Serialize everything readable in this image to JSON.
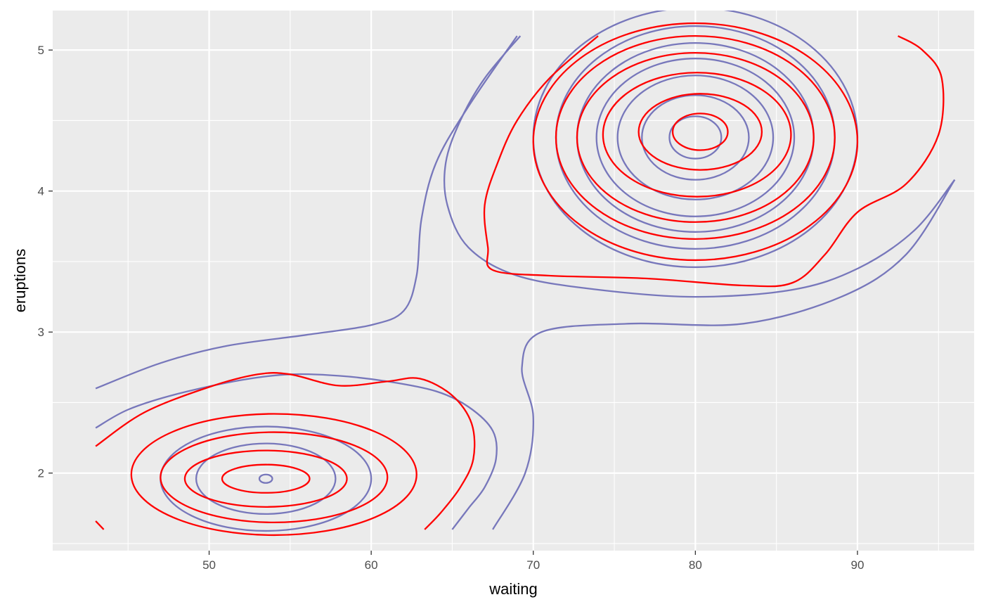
{
  "chart_data": {
    "type": "contour",
    "xlabel": "waiting",
    "ylabel": "eruptions",
    "xlim": [
      40.35,
      97.2
    ],
    "ylim": [
      1.45,
      5.28
    ],
    "x_ticks": [
      50,
      60,
      70,
      80,
      90
    ],
    "y_ticks": [
      2,
      3,
      4,
      5
    ],
    "x_minor": [
      45,
      55,
      65,
      75,
      85,
      95
    ],
    "y_minor": [
      1.5,
      2.5,
      3.5,
      4.5
    ],
    "grid": true,
    "background": "#ebebeb",
    "colors": {
      "blue": "#7777bb",
      "red": "#ff0000",
      "grid": "#ffffff"
    },
    "series": [
      {
        "color": "#7777bb",
        "components": [
          {
            "shape": "ellipse",
            "cx": 80.0,
            "cy": 4.38,
            "rx": 1.6,
            "ry": 0.15
          },
          {
            "shape": "ellipse",
            "cx": 80.0,
            "cy": 4.38,
            "rx": 3.3,
            "ry": 0.3
          },
          {
            "shape": "ellipse",
            "cx": 80.0,
            "cy": 4.38,
            "rx": 4.8,
            "ry": 0.44
          },
          {
            "shape": "ellipse",
            "cx": 80.0,
            "cy": 4.38,
            "rx": 6.1,
            "ry": 0.56
          },
          {
            "shape": "ellipse",
            "cx": 80.0,
            "cy": 4.38,
            "rx": 7.3,
            "ry": 0.67
          },
          {
            "shape": "ellipse",
            "cx": 80.0,
            "cy": 4.38,
            "rx": 8.6,
            "ry": 0.79
          },
          {
            "shape": "ellipse",
            "cx": 80.0,
            "cy": 4.38,
            "rx": 10.0,
            "ry": 0.92
          },
          {
            "shape": "ellipse",
            "cx": 53.5,
            "cy": 1.96,
            "rx": 0.4,
            "ry": 0.03
          },
          {
            "shape": "ellipse",
            "cx": 53.5,
            "cy": 1.96,
            "rx": 4.3,
            "ry": 0.25
          },
          {
            "shape": "ellipse",
            "cx": 53.5,
            "cy": 1.96,
            "rx": 6.5,
            "ry": 0.37
          },
          {
            "points": [
              [
                43.0,
                2.32
              ],
              [
                45.0,
                2.45
              ],
              [
                48.0,
                2.56
              ],
              [
                52.0,
                2.66
              ],
              [
                55.0,
                2.7
              ],
              [
                58.0,
                2.69
              ],
              [
                61.0,
                2.65
              ],
              [
                64.0,
                2.58
              ],
              [
                66.0,
                2.47
              ],
              [
                67.5,
                2.3
              ],
              [
                67.7,
                2.1
              ],
              [
                67.0,
                1.9
              ],
              [
                66.0,
                1.75
              ],
              [
                65.0,
                1.6
              ]
            ]
          },
          {
            "points": [
              [
                43.0,
                2.6
              ],
              [
                47.0,
                2.78
              ],
              [
                51.0,
                2.9
              ],
              [
                56.0,
                2.98
              ],
              [
                60.0,
                3.05
              ],
              [
                62.0,
                3.15
              ],
              [
                62.8,
                3.4
              ],
              [
                63.1,
                3.8
              ],
              [
                64.0,
                4.2
              ],
              [
                66.0,
                4.6
              ],
              [
                69.0,
                5.1
              ]
            ]
          },
          {
            "points": [
              [
                69.2,
                5.1
              ],
              [
                67.0,
                4.8
              ],
              [
                65.5,
                4.5
              ],
              [
                64.6,
                4.2
              ],
              [
                64.7,
                3.9
              ],
              [
                66.0,
                3.6
              ],
              [
                69.0,
                3.4
              ],
              [
                74.0,
                3.3
              ],
              [
                80.0,
                3.25
              ],
              [
                86.0,
                3.3
              ],
              [
                90.0,
                3.45
              ],
              [
                93.5,
                3.72
              ],
              [
                96.0,
                4.08
              ]
            ]
          },
          {
            "points": [
              [
                67.5,
                1.6
              ],
              [
                69.5,
                2.0
              ],
              [
                70.0,
                2.4
              ],
              [
                69.3,
                2.75
              ],
              [
                70.5,
                3.0
              ],
              [
                76.0,
                3.06
              ],
              [
                83.0,
                3.06
              ],
              [
                89.0,
                3.25
              ],
              [
                93.0,
                3.55
              ],
              [
                96.0,
                4.08
              ]
            ]
          }
        ]
      },
      {
        "color": "#ff0000",
        "components": [
          {
            "shape": "ellipse",
            "cx": 80.3,
            "cy": 4.42,
            "rx": 1.7,
            "ry": 0.13
          },
          {
            "shape": "ellipse",
            "cx": 80.3,
            "cy": 4.42,
            "rx": 3.8,
            "ry": 0.27
          },
          {
            "shape": "ellipse",
            "cx": 80.1,
            "cy": 4.4,
            "rx": 5.8,
            "ry": 0.44
          },
          {
            "shape": "ellipse",
            "cx": 80.0,
            "cy": 4.38,
            "rx": 7.3,
            "ry": 0.6
          },
          {
            "shape": "ellipse",
            "cx": 80.0,
            "cy": 4.38,
            "rx": 8.6,
            "ry": 0.72
          },
          {
            "shape": "ellipse",
            "cx": 80.0,
            "cy": 4.35,
            "rx": 10.0,
            "ry": 0.84
          },
          {
            "shape": "ellipse",
            "cx": 53.5,
            "cy": 1.96,
            "rx": 2.7,
            "ry": 0.1
          },
          {
            "shape": "ellipse",
            "cx": 53.5,
            "cy": 1.96,
            "rx": 5.0,
            "ry": 0.2
          },
          {
            "shape": "ellipse",
            "cx": 54.0,
            "cy": 1.97,
            "rx": 7.0,
            "ry": 0.32
          },
          {
            "shape": "ellipse",
            "cx": 54.0,
            "cy": 1.99,
            "rx": 8.8,
            "ry": 0.43
          },
          {
            "points": [
              [
                43.0,
                2.19
              ],
              [
                46.0,
                2.43
              ],
              [
                50.0,
                2.61
              ],
              [
                53.0,
                2.7
              ],
              [
                55.0,
                2.7
              ],
              [
                58.0,
                2.62
              ],
              [
                61.0,
                2.65
              ],
              [
                63.0,
                2.67
              ],
              [
                65.0,
                2.55
              ],
              [
                66.2,
                2.35
              ],
              [
                66.3,
                2.1
              ],
              [
                65.5,
                1.9
              ],
              [
                64.3,
                1.72
              ],
              [
                63.3,
                1.6
              ]
            ]
          },
          {
            "points": [
              [
                74.0,
                5.1
              ],
              [
                71.0,
                4.8
              ],
              [
                69.0,
                4.5
              ],
              [
                67.8,
                4.2
              ],
              [
                67.0,
                3.9
              ],
              [
                67.2,
                3.6
              ],
              [
                67.5,
                3.44
              ],
              [
                71.0,
                3.4
              ],
              [
                77.0,
                3.38
              ],
              [
                83.0,
                3.33
              ],
              [
                86.0,
                3.35
              ],
              [
                88.0,
                3.55
              ],
              [
                90.0,
                3.85
              ],
              [
                93.0,
                4.05
              ],
              [
                95.0,
                4.4
              ],
              [
                95.2,
                4.8
              ],
              [
                94.0,
                5.0
              ],
              [
                92.5,
                5.1
              ]
            ]
          },
          {
            "points": [
              [
                43.0,
                1.66
              ],
              [
                43.5,
                1.6
              ]
            ]
          }
        ]
      }
    ]
  }
}
